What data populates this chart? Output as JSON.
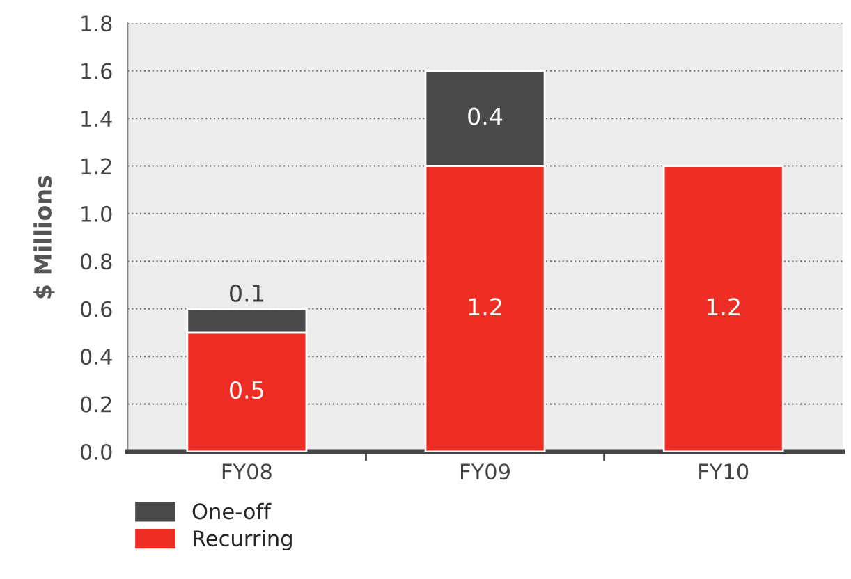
{
  "chart_data": {
    "type": "bar",
    "stacked": true,
    "ylabel": "$ Millions",
    "categories": [
      "FY08",
      "FY09",
      "FY10"
    ],
    "series": [
      {
        "name": "Recurring",
        "color": "#ee2e24",
        "values": [
          0.5,
          1.2,
          1.2
        ]
      },
      {
        "name": "One-off",
        "color": "#4a4a4a",
        "values": [
          0.1,
          0.4,
          null
        ]
      }
    ],
    "ylim": [
      0,
      1.8
    ],
    "yticks": [
      {
        "value": 0,
        "label": "0.0"
      },
      0.2,
      0.4,
      0.6,
      0.8,
      {
        "value": 1,
        "label": "1.0"
      },
      1.2,
      1.4,
      1.6,
      1.8
    ],
    "grid": "y",
    "legend": "bottom left",
    "data_labels": true
  }
}
